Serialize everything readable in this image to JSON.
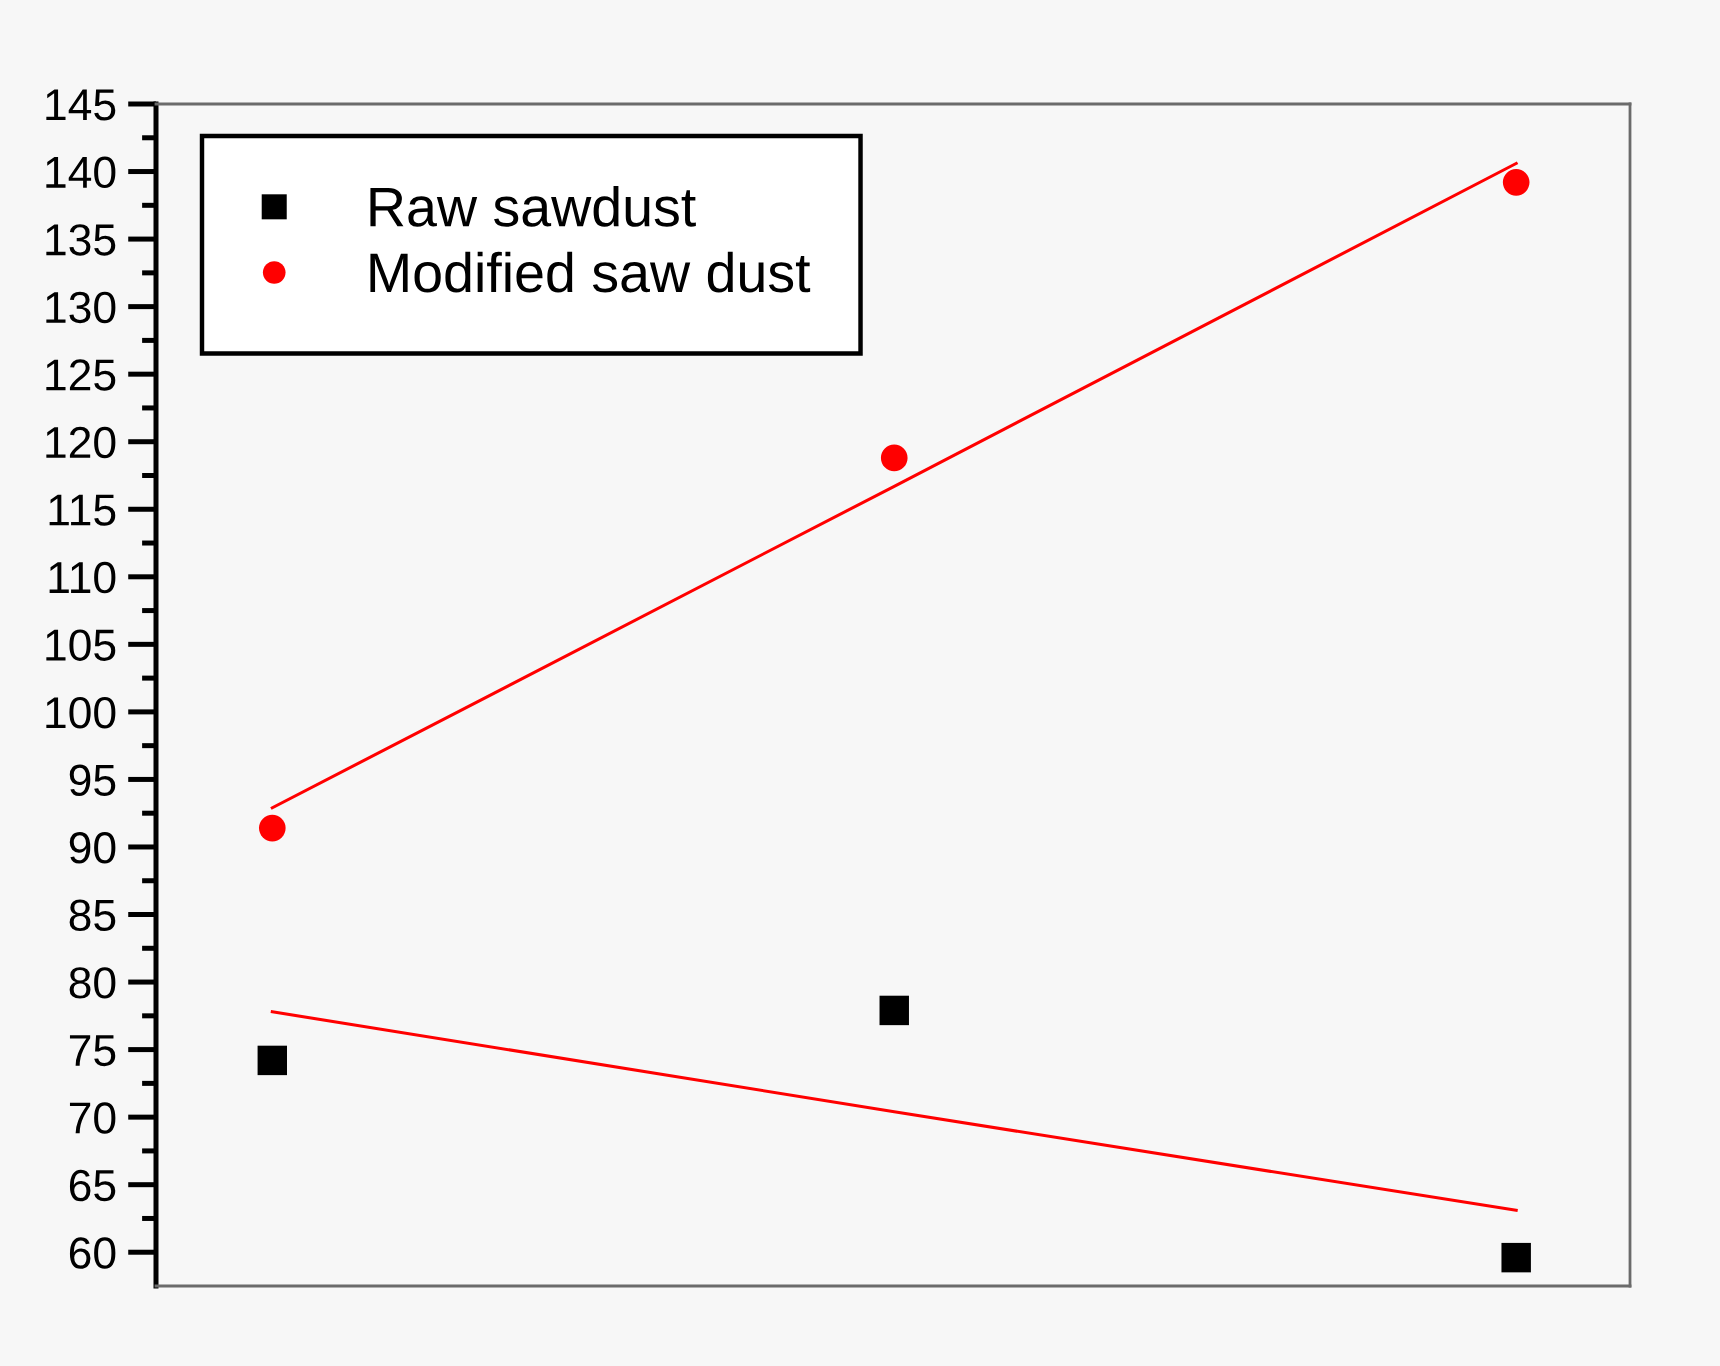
{
  "chart_data": {
    "type": "scatter",
    "categories": [
      null,
      null,
      null
    ],
    "series": [
      {
        "name": "Raw sawdust",
        "color": "#000000",
        "marker": "square",
        "values": [
          74.2,
          77.9,
          59.6
        ]
      },
      {
        "name": "Modified saw dust",
        "color": "#ff0000",
        "marker": "circle",
        "values": [
          91.4,
          118.8,
          139.2
        ]
      },
      {
        "type": "line",
        "color": "#ff0000",
        "line_style": "solid",
        "values": [
          77.8,
          70.4,
          63.1
        ]
      },
      {
        "type": "line",
        "color": "#ff0000",
        "line_style": "solid",
        "values": [
          92.9,
          116.7,
          140.6
        ]
      }
    ],
    "ylim": [
      57.5,
      145
    ],
    "yticks": [
      60,
      65,
      70,
      75,
      80,
      85,
      90,
      95,
      100,
      105,
      110,
      115,
      120,
      125,
      130,
      135,
      140,
      145
    ],
    "tick_labels": "y",
    "legend": "top left",
    "grid": false
  }
}
